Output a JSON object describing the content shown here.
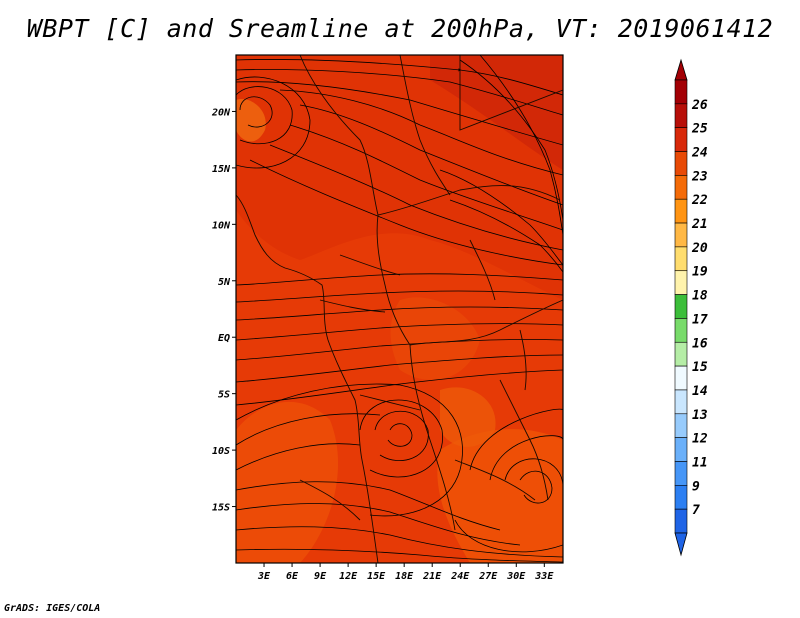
{
  "title": "WBPT [C] and Sreamline at 200hPa, VT: 2019061412",
  "footer": "GrADS: IGES/COLA",
  "map": {
    "lon_range": [
      0,
      35
    ],
    "lat_range": [
      -20,
      25
    ],
    "x_ticks": [
      "3E",
      "6E",
      "9E",
      "12E",
      "15E",
      "18E",
      "21E",
      "24E",
      "27E",
      "30E",
      "33E"
    ],
    "x_tick_values": [
      3,
      6,
      9,
      12,
      15,
      18,
      21,
      24,
      27,
      30,
      33
    ],
    "y_ticks": [
      "20N",
      "15N",
      "10N",
      "5N",
      "EQ",
      "5S",
      "10S",
      "15S"
    ],
    "y_tick_values": [
      20,
      15,
      10,
      5,
      0,
      -5,
      -10,
      -15
    ],
    "field_colors": {
      "dominant": "#E63A06",
      "warm": "#D42A06",
      "cool": "#F05508"
    }
  },
  "colorbar": {
    "labels": [
      "7",
      "9",
      "11",
      "12",
      "13",
      "14",
      "15",
      "16",
      "17",
      "18",
      "19",
      "20",
      "21",
      "22",
      "23",
      "24",
      "25",
      "26"
    ],
    "colors": [
      "#1F64E6",
      "#2C7FF2",
      "#4696F7",
      "#6AB0FA",
      "#97CBFC",
      "#C9E6FE",
      "#F0FAFF",
      "#B5EDA6",
      "#78DB6A",
      "#3CBE3A",
      "#FFF3AC",
      "#FFDD6E",
      "#FFB845",
      "#FF9413",
      "#F46B08",
      "#E84A06",
      "#D8290A",
      "#B70F09",
      "#A30005"
    ],
    "extend_low_color": "#1F64E6",
    "extend_high_color": "#A30005"
  }
}
